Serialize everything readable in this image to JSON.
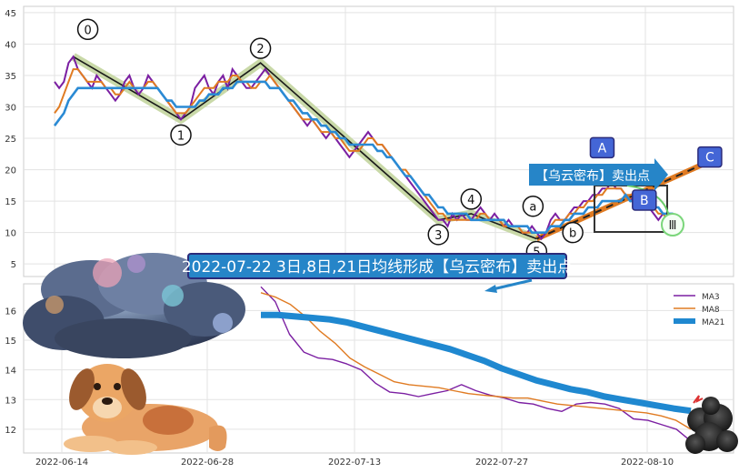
{
  "chart_data": [
    {
      "type": "line",
      "panel": "upper",
      "ylim": [
        3,
        46
      ],
      "yticks": [
        5,
        10,
        15,
        20,
        25,
        30,
        35,
        40,
        45
      ],
      "grid": true,
      "series": [
        {
          "name": "",
          "color": "#7b1fa2",
          "values": [
            34,
            33,
            34,
            37,
            38,
            36,
            35,
            34,
            33,
            35,
            34,
            33,
            32,
            31,
            32,
            34,
            35,
            33,
            32,
            33,
            35,
            34,
            33,
            32,
            31,
            30,
            29,
            28,
            29,
            30,
            33,
            34,
            35,
            33,
            32,
            34,
            35,
            33,
            36,
            35,
            34,
            33,
            33,
            34,
            35,
            36,
            35,
            34,
            33,
            32,
            31,
            30,
            29,
            28,
            27,
            28,
            27,
            26,
            25,
            26,
            25,
            24,
            23,
            22,
            23,
            24,
            25,
            26,
            25,
            24,
            24,
            23,
            22,
            21,
            20,
            19,
            18,
            17,
            16,
            15,
            14,
            13,
            12,
            12,
            11,
            13,
            12,
            13,
            12,
            12,
            13,
            14,
            13,
            12,
            13,
            12,
            11,
            12,
            11,
            11,
            10,
            10,
            11,
            10,
            9,
            10,
            12,
            13,
            12,
            12,
            13,
            14,
            14,
            15,
            15,
            16,
            16,
            17,
            17,
            18,
            17,
            17,
            16,
            15,
            16,
            15,
            14,
            14,
            13,
            12,
            13,
            12,
            12,
            11,
            11
          ]
        },
        {
          "name": "",
          "color": "#e07b22",
          "values": [
            29,
            30,
            32,
            34,
            36,
            36,
            35,
            34,
            34,
            34,
            34,
            33,
            33,
            32,
            32,
            33,
            34,
            33,
            33,
            33,
            34,
            34,
            33,
            32,
            31,
            30,
            29,
            29,
            29,
            30,
            31,
            32,
            33,
            33,
            33,
            34,
            34,
            34,
            35,
            35,
            34,
            34,
            33,
            33,
            34,
            34,
            35,
            34,
            33,
            32,
            31,
            30,
            29,
            28,
            28,
            28,
            27,
            26,
            26,
            26,
            25,
            25,
            24,
            23,
            23,
            23,
            24,
            25,
            25,
            24,
            24,
            23,
            22,
            21,
            20,
            20,
            19,
            18,
            17,
            16,
            15,
            14,
            13,
            13,
            12,
            12,
            12,
            12,
            12,
            12,
            12,
            13,
            13,
            12,
            12,
            12,
            11,
            11,
            11,
            11,
            10,
            10,
            10,
            10,
            10,
            10,
            11,
            12,
            12,
            12,
            13,
            13,
            14,
            14,
            15,
            15,
            16,
            16,
            17,
            17,
            17,
            17,
            16,
            16,
            16,
            15,
            15,
            14,
            14,
            13,
            13,
            12,
            12,
            12,
            11
          ]
        },
        {
          "name": "",
          "color": "#2a8ad4",
          "values": [
            27,
            28,
            29,
            31,
            32,
            33,
            33,
            33,
            33,
            33,
            33,
            33,
            33,
            33,
            33,
            33,
            33,
            33,
            33,
            33,
            33,
            33,
            33,
            32,
            31,
            31,
            30,
            30,
            30,
            30,
            30,
            31,
            31,
            32,
            32,
            32,
            33,
            33,
            33,
            34,
            34,
            34,
            34,
            34,
            34,
            34,
            33,
            33,
            33,
            32,
            31,
            31,
            30,
            29,
            29,
            28,
            28,
            27,
            27,
            26,
            26,
            25,
            25,
            24,
            24,
            24,
            24,
            24,
            24,
            23,
            23,
            22,
            22,
            21,
            20,
            19,
            19,
            18,
            17,
            16,
            16,
            15,
            14,
            14,
            13,
            13,
            13,
            13,
            13,
            12,
            12,
            12,
            12,
            12,
            12,
            12,
            12,
            11,
            11,
            11,
            11,
            11,
            10,
            10,
            10,
            10,
            11,
            11,
            11,
            12,
            12,
            13,
            13,
            13,
            14,
            14,
            14,
            15,
            15,
            15,
            15,
            15,
            16,
            15,
            15,
            15,
            15,
            14,
            14,
            14,
            13,
            13,
            13,
            12,
            12
          ]
        }
      ],
      "wave_points": [
        {
          "label": "0",
          "x": 4,
          "y": 38
        },
        {
          "label": "1",
          "x": 27,
          "y": 28
        },
        {
          "label": "2",
          "x": 44,
          "y": 37
        },
        {
          "label": "3",
          "x": 82,
          "y": 12
        },
        {
          "label": "4",
          "x": 89,
          "y": 13
        },
        {
          "label": "5",
          "x": 103,
          "y": 9
        },
        {
          "label": "a",
          "x": 103,
          "y": 11
        },
        {
          "label": "b",
          "x": 108,
          "y": 10
        },
        {
          "label": "A",
          "x": 117,
          "y": 18
        },
        {
          "label": "B",
          "x": 126,
          "y": 14
        },
        {
          "label": "C",
          "x": 140,
          "y": 20
        }
      ],
      "annotations": {
        "circled_labels": [
          "0",
          "1",
          "2",
          "3",
          "4",
          "5",
          "a",
          "b"
        ],
        "boxed_labels": [
          "A",
          "B",
          "C"
        ],
        "roman_marker": "Ⅲ",
        "signal_banner": "【乌云密布】卖出点",
        "main_banner": "2022-07-22 3日,8日,21日均线形成【乌云密布】卖出点"
      }
    },
    {
      "type": "line",
      "panel": "lower",
      "ylim": [
        11.2,
        16.9
      ],
      "yticks": [
        12,
        13,
        14,
        15,
        16
      ],
      "x_tick_labels": [
        "2022-06-14",
        "2022-06-28",
        "2022-07-13",
        "2022-07-27",
        "2022-08-10"
      ],
      "grid": true,
      "legend_position": "top-right",
      "series": [
        {
          "name": "MA3",
          "color": "#7b1fa2",
          "values": [
            16.8,
            16.3,
            15.2,
            14.6,
            14.4,
            14.35,
            14.2,
            14.0,
            13.55,
            13.25,
            13.2,
            13.1,
            13.2,
            13.3,
            13.5,
            13.3,
            13.15,
            13.05,
            12.9,
            12.85,
            12.7,
            12.6,
            12.85,
            12.9,
            12.85,
            12.7,
            12.35,
            12.3,
            12.15,
            12.0,
            11.6
          ]
        },
        {
          "name": "MA8",
          "color": "#e07b22",
          "values": [
            16.6,
            16.45,
            16.2,
            15.8,
            15.3,
            14.9,
            14.4,
            14.1,
            13.85,
            13.6,
            13.5,
            13.45,
            13.4,
            13.3,
            13.2,
            13.15,
            13.1,
            13.05,
            13.05,
            12.95,
            12.85,
            12.8,
            12.75,
            12.7,
            12.65,
            12.6,
            12.55,
            12.45,
            12.3,
            12.0
          ]
        },
        {
          "name": "MA21",
          "color": "#1f88d0",
          "values": [
            15.85,
            15.85,
            15.8,
            15.75,
            15.7,
            15.6,
            15.45,
            15.3,
            15.15,
            15.0,
            14.85,
            14.7,
            14.5,
            14.3,
            14.05,
            13.85,
            13.65,
            13.5,
            13.35,
            13.25,
            13.1,
            13.0,
            12.9,
            12.8,
            12.7,
            12.62
          ]
        }
      ]
    }
  ]
}
